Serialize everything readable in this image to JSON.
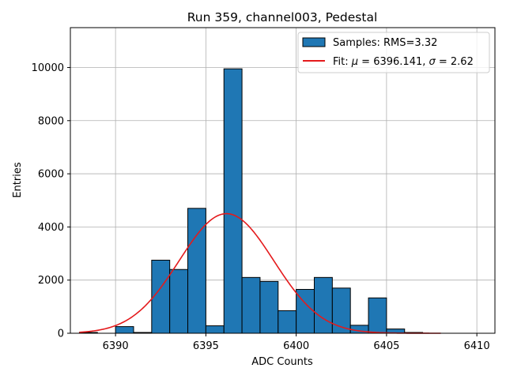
{
  "chart_data": {
    "type": "bar",
    "title": "Run 359, channel003, Pedestal",
    "xlabel": "ADC Counts",
    "ylabel": "Entries",
    "xlim": [
      6387.5,
      6411
    ],
    "ylim": [
      0,
      11500
    ],
    "xticks": [
      6390,
      6395,
      6400,
      6405,
      6410
    ],
    "yticks": [
      0,
      2000,
      4000,
      6000,
      8000,
      10000
    ],
    "grid": true,
    "legend_position": "top-right",
    "histogram": {
      "name": "Samples: RMS=3.32",
      "color": "#1f77b4",
      "bin_edges": [
        6388,
        6389,
        6390,
        6391,
        6392,
        6393,
        6394,
        6395,
        6396,
        6397,
        6398,
        6399,
        6400,
        6401,
        6402,
        6403,
        6404,
        6405,
        6406,
        6407,
        6408,
        6409,
        6410
      ],
      "counts": [
        30,
        0,
        250,
        30,
        2750,
        2400,
        4700,
        280,
        9950,
        2100,
        1950,
        850,
        1650,
        2100,
        1700,
        300,
        1330,
        160,
        30,
        0,
        0,
        0
      ]
    },
    "fit": {
      "name": "Fit: μ = 6396.141, σ = 2.62",
      "legend_prefix": "Fit: ",
      "legend_mu": "μ",
      "legend_mu_value": " = 6396.141, ",
      "legend_sigma": "σ",
      "legend_sigma_value": " = 2.62",
      "color": "#e41a1c",
      "mu": 6396.141,
      "sigma": 2.62,
      "amplitude": 4500,
      "x_range": [
        6388,
        6408
      ]
    }
  }
}
